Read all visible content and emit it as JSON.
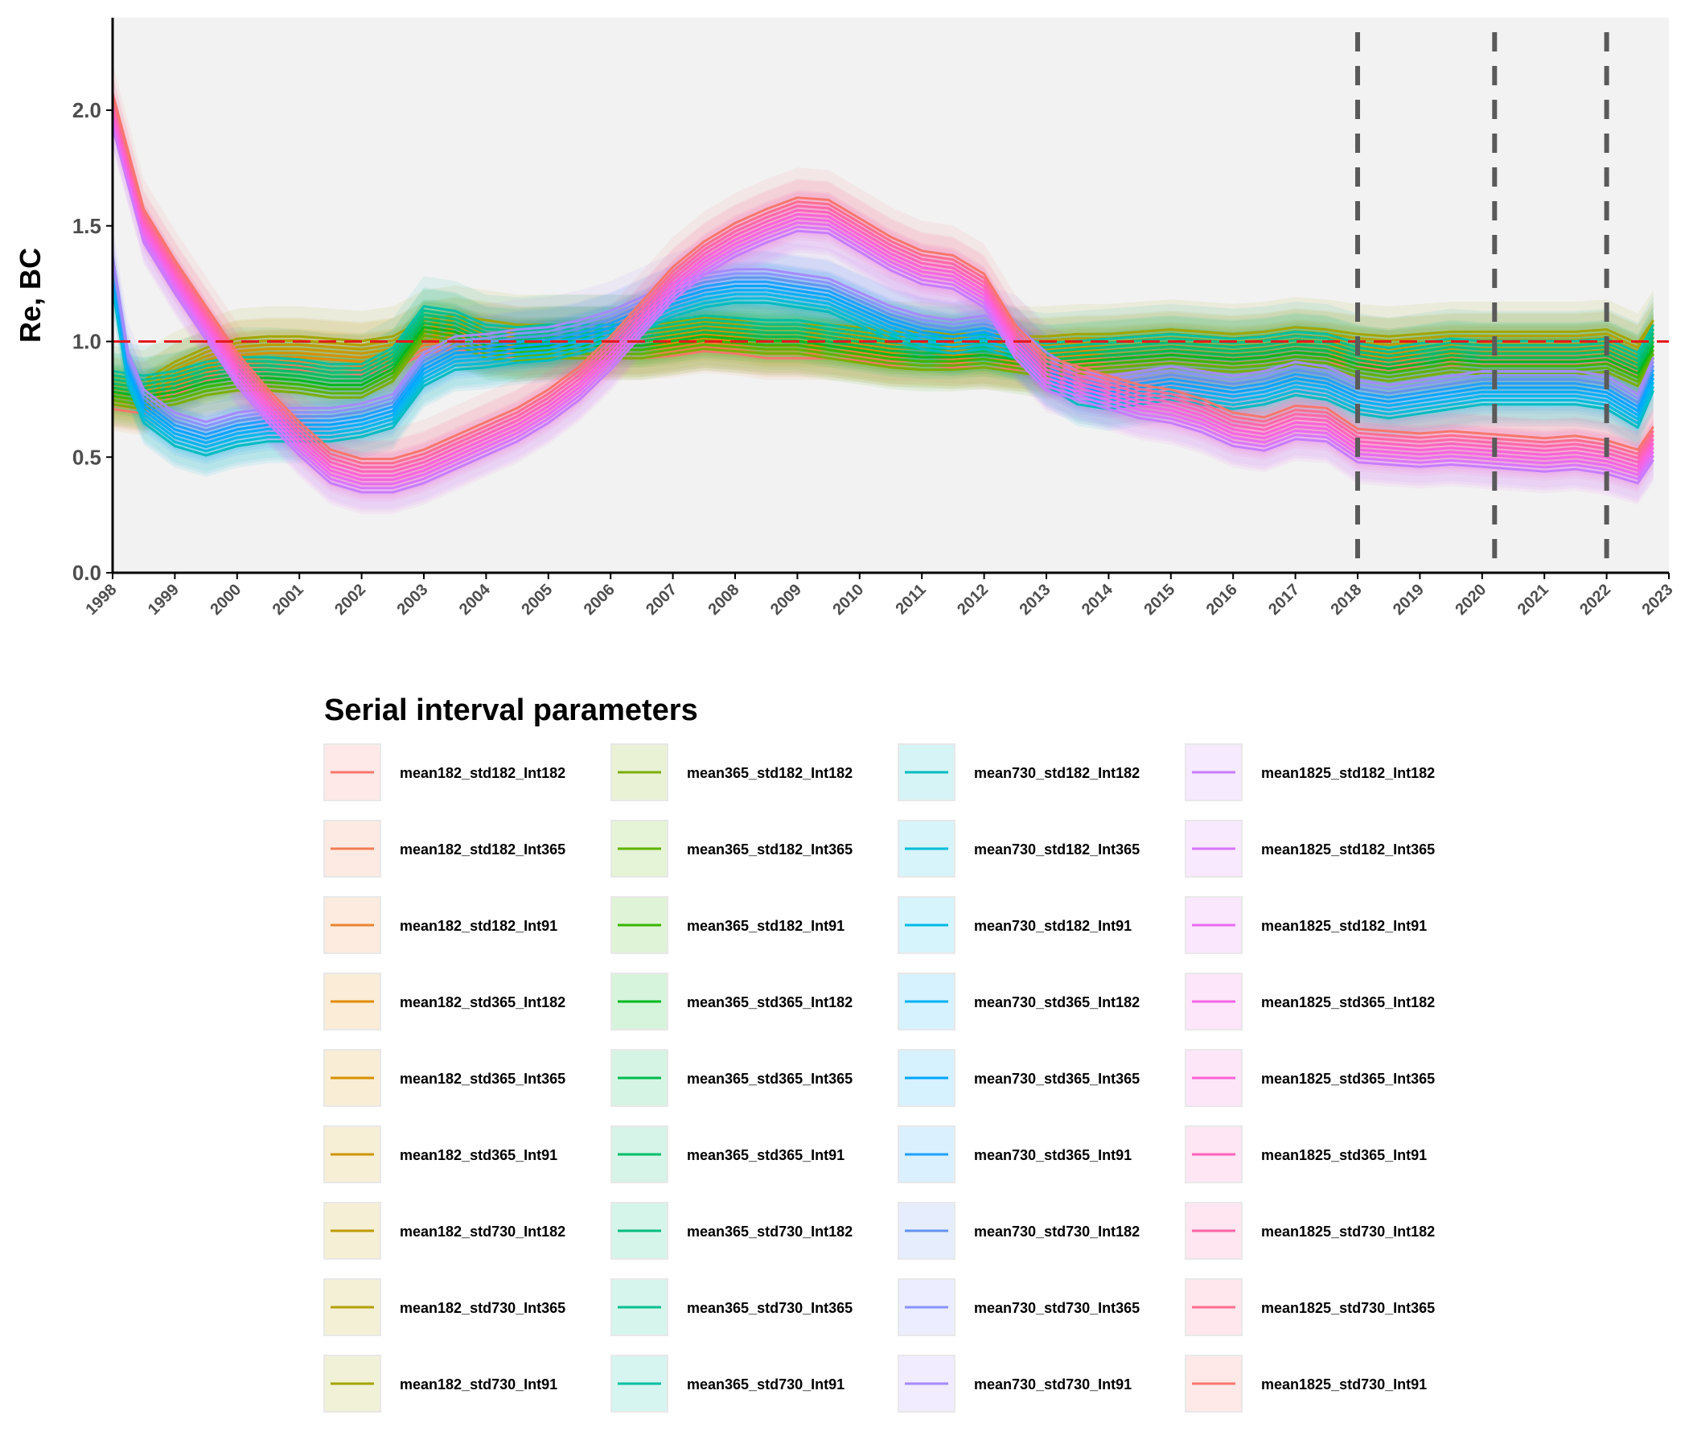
{
  "chart_data": {
    "type": "line",
    "ylabel": "Re, BC",
    "xlabel": "",
    "title": "",
    "xlim": [
      1998,
      2023
    ],
    "ylim": [
      0,
      2.4
    ],
    "x_ticks": [
      "1998",
      "1999",
      "2000",
      "2001",
      "2002",
      "2003",
      "2004",
      "2005",
      "2006",
      "2007",
      "2008",
      "2009",
      "2010",
      "2011",
      "2012",
      "2013",
      "2014",
      "2015",
      "2016",
      "2017",
      "2018",
      "2019",
      "2020",
      "2021",
      "2022",
      "2023"
    ],
    "y_ticks": [
      "0.0",
      "0.5",
      "1.0",
      "1.5",
      "2.0"
    ],
    "reference_line": {
      "y": 1.0,
      "color": "#e41a1c"
    },
    "vertical_markers": [
      2018.0,
      2020.2,
      2022.0
    ],
    "legend": {
      "title": "Serial interval parameters",
      "placement": "bottom",
      "columns": 4
    },
    "groups": [
      {
        "key": "g182",
        "x": [
          1998,
          1998.5,
          1999,
          1999.5,
          2000,
          2000.5,
          2001,
          2001.5,
          2002,
          2002.5,
          2003,
          2003.5,
          2004,
          2004.5,
          2005,
          2005.5,
          2006,
          2006.5,
          2007,
          2007.5,
          2008,
          2008.5,
          2009,
          2009.5,
          2010,
          2010.5,
          2011,
          2011.5,
          2012,
          2012.5,
          2013,
          2013.5,
          2014,
          2014.5,
          2015,
          2015.5,
          2016,
          2016.5,
          2017,
          2017.5,
          2018,
          2018.5,
          2019,
          2019.5,
          2020,
          2020.5,
          2021,
          2021.5,
          2022,
          2022.5,
          2022.75
        ],
        "y": [
          0.78,
          0.76,
          0.84,
          0.9,
          0.94,
          0.95,
          0.95,
          0.94,
          0.93,
          0.95,
          1.02,
          1.04,
          1.02,
          1.0,
          1.0,
          1.0,
          1.0,
          1.0,
          1.01,
          1.03,
          1.02,
          1.0,
          1.0,
          1.0,
          0.99,
          0.97,
          0.97,
          0.96,
          0.96,
          0.95,
          0.95,
          0.96,
          0.96,
          0.97,
          0.98,
          0.97,
          0.96,
          0.97,
          0.99,
          0.98,
          0.96,
          0.95,
          0.96,
          0.97,
          0.97,
          0.97,
          0.97,
          0.97,
          0.98,
          0.92,
          1.02
        ]
      },
      {
        "key": "g365",
        "x": [
          1998,
          1998.5,
          1999,
          1999.5,
          2000,
          2000.5,
          2001,
          2001.5,
          2002,
          2002.5,
          2003,
          2003.5,
          2004,
          2004.5,
          2005,
          2005.5,
          2006,
          2006.5,
          2007,
          2007.5,
          2008,
          2008.5,
          2009,
          2009.5,
          2010,
          2010.5,
          2011,
          2011.5,
          2012,
          2012.5,
          2013,
          2013.5,
          2014,
          2014.5,
          2015,
          2015.5,
          2016,
          2016.5,
          2017,
          2017.5,
          2018,
          2018.5,
          2019,
          2019.5,
          2020,
          2020.5,
          2021,
          2021.5,
          2022,
          2022.5,
          2022.75
        ],
        "y": [
          0.8,
          0.78,
          0.8,
          0.84,
          0.86,
          0.86,
          0.85,
          0.83,
          0.83,
          0.9,
          1.08,
          1.06,
          1.0,
          0.99,
          1.0,
          1.0,
          1.0,
          1.0,
          1.02,
          1.04,
          1.03,
          1.02,
          1.02,
          1.0,
          0.98,
          0.96,
          0.95,
          0.95,
          0.96,
          0.94,
          0.92,
          0.93,
          0.94,
          0.95,
          0.96,
          0.95,
          0.94,
          0.95,
          0.97,
          0.96,
          0.92,
          0.9,
          0.92,
          0.94,
          0.93,
          0.93,
          0.93,
          0.93,
          0.94,
          0.88,
          1.0
        ]
      },
      {
        "key": "g730",
        "x": [
          1998,
          1998.25,
          1998.5,
          1999,
          1999.5,
          2000,
          2000.5,
          2001,
          2001.5,
          2002,
          2002.5,
          2003,
          2003.5,
          2004,
          2004.5,
          2005,
          2005.5,
          2006,
          2006.5,
          2007,
          2007.5,
          2008,
          2008.5,
          2009,
          2009.5,
          2010,
          2010.5,
          2011,
          2011.5,
          2012,
          2012.5,
          2013,
          2013.5,
          2014,
          2014.5,
          2015,
          2015.5,
          2016,
          2016.5,
          2017,
          2017.5,
          2018,
          2018.5,
          2019,
          2019.5,
          2020,
          2020.5,
          2021,
          2021.5,
          2022,
          2022.5,
          2022.75
        ],
        "y": [
          1.3,
          0.88,
          0.72,
          0.62,
          0.58,
          0.62,
          0.64,
          0.64,
          0.64,
          0.66,
          0.7,
          0.88,
          0.95,
          0.96,
          0.98,
          0.99,
          1.02,
          1.06,
          1.12,
          1.18,
          1.22,
          1.24,
          1.24,
          1.22,
          1.2,
          1.14,
          1.08,
          1.04,
          1.02,
          1.04,
          1.0,
          0.88,
          0.8,
          0.78,
          0.8,
          0.82,
          0.8,
          0.78,
          0.8,
          0.84,
          0.82,
          0.76,
          0.74,
          0.76,
          0.78,
          0.8,
          0.8,
          0.8,
          0.8,
          0.78,
          0.7,
          0.86
        ]
      },
      {
        "key": "g1825",
        "x": [
          1998,
          1998.25,
          1998.5,
          1999,
          1999.5,
          2000,
          2000.5,
          2001,
          2001.5,
          2002,
          2002.5,
          2003,
          2003.5,
          2004,
          2004.5,
          2005,
          2005.5,
          2006,
          2006.5,
          2007,
          2007.5,
          2008,
          2008.5,
          2009,
          2009.5,
          2010,
          2010.5,
          2011,
          2011.5,
          2012,
          2012.5,
          2013,
          2013.5,
          2014,
          2014.5,
          2015,
          2015.5,
          2016,
          2016.5,
          2017,
          2017.5,
          2018,
          2018.5,
          2019,
          2019.5,
          2020,
          2020.5,
          2021,
          2021.5,
          2022,
          2022.5,
          2022.75
        ],
        "y": [
          2.0,
          1.75,
          1.5,
          1.28,
          1.08,
          0.88,
          0.72,
          0.58,
          0.46,
          0.42,
          0.42,
          0.46,
          0.52,
          0.58,
          0.64,
          0.72,
          0.82,
          0.95,
          1.1,
          1.25,
          1.36,
          1.44,
          1.5,
          1.55,
          1.54,
          1.46,
          1.38,
          1.32,
          1.3,
          1.22,
          1.0,
          0.86,
          0.82,
          0.78,
          0.74,
          0.72,
          0.68,
          0.62,
          0.6,
          0.65,
          0.64,
          0.55,
          0.54,
          0.53,
          0.54,
          0.53,
          0.52,
          0.51,
          0.52,
          0.5,
          0.46,
          0.56
        ]
      }
    ],
    "series": [
      {
        "name": "mean182_std182_Int182",
        "group": "g182",
        "color": "#F8766D"
      },
      {
        "name": "mean182_std182_Int365",
        "group": "g182",
        "color": "#F27D53"
      },
      {
        "name": "mean182_std182_Int91",
        "group": "g182",
        "color": "#EA8331"
      },
      {
        "name": "mean182_std365_Int182",
        "group": "g182",
        "color": "#E18A00"
      },
      {
        "name": "mean182_std365_Int365",
        "group": "g182",
        "color": "#D89000"
      },
      {
        "name": "mean182_std365_Int91",
        "group": "g182",
        "color": "#CD9600"
      },
      {
        "name": "mean182_std730_Int182",
        "group": "g182",
        "color": "#C09B00"
      },
      {
        "name": "mean182_std730_Int365",
        "group": "g182",
        "color": "#B3A000"
      },
      {
        "name": "mean182_std730_Int91",
        "group": "g182",
        "color": "#A3A500"
      },
      {
        "name": "mean365_std182_Int182",
        "group": "g365",
        "color": "#7CAE00"
      },
      {
        "name": "mean365_std182_Int365",
        "group": "g365",
        "color": "#5EB300"
      },
      {
        "name": "mean365_std182_Int91",
        "group": "g365",
        "color": "#39B600"
      },
      {
        "name": "mean365_std365_Int182",
        "group": "g365",
        "color": "#00B81F"
      },
      {
        "name": "mean365_std365_Int365",
        "group": "g365",
        "color": "#00BB4E"
      },
      {
        "name": "mean365_std365_Int91",
        "group": "g365",
        "color": "#00BD6A"
      },
      {
        "name": "mean365_std730_Int182",
        "group": "g365",
        "color": "#00BF7D"
      },
      {
        "name": "mean365_std730_Int365",
        "group": "g365",
        "color": "#00C08E"
      },
      {
        "name": "mean365_std730_Int91",
        "group": "g365",
        "color": "#00C0A3"
      },
      {
        "name": "mean730_std182_Int182",
        "group": "g730",
        "color": "#00BCC0"
      },
      {
        "name": "mean730_std182_Int365",
        "group": "g730",
        "color": "#00BCD8"
      },
      {
        "name": "mean730_std182_Int91",
        "group": "g730",
        "color": "#00B8E7"
      },
      {
        "name": "mean730_std365_Int182",
        "group": "g730",
        "color": "#00B0F6"
      },
      {
        "name": "mean730_std365_Int365",
        "group": "g730",
        "color": "#00A5FF"
      },
      {
        "name": "mean730_std365_Int91",
        "group": "g730",
        "color": "#1EA0FF"
      },
      {
        "name": "mean730_std730_Int182",
        "group": "g730",
        "color": "#6493F0"
      },
      {
        "name": "mean730_std730_Int365",
        "group": "g730",
        "color": "#8B93FF"
      },
      {
        "name": "mean730_std730_Int91",
        "group": "g730",
        "color": "#A58AFF"
      },
      {
        "name": "mean1825_std182_Int182",
        "group": "g1825",
        "color": "#C77CFF"
      },
      {
        "name": "mean1825_std182_Int365",
        "group": "g1825",
        "color": "#D874FD"
      },
      {
        "name": "mean1825_std182_Int91",
        "group": "g1825",
        "color": "#E86BF3"
      },
      {
        "name": "mean1825_std365_Int182",
        "group": "g1825",
        "color": "#F564E3"
      },
      {
        "name": "mean1825_std365_Int365",
        "group": "g1825",
        "color": "#FB61D7"
      },
      {
        "name": "mean1825_std365_Int91",
        "group": "g1825",
        "color": "#FF62BC"
      },
      {
        "name": "mean1825_std730_Int182",
        "group": "g1825",
        "color": "#FF66A8"
      },
      {
        "name": "mean1825_std730_Int365",
        "group": "g1825",
        "color": "#FD6C90"
      },
      {
        "name": "mean1825_std730_Int91",
        "group": "g1825",
        "color": "#F8766D"
      }
    ]
  }
}
